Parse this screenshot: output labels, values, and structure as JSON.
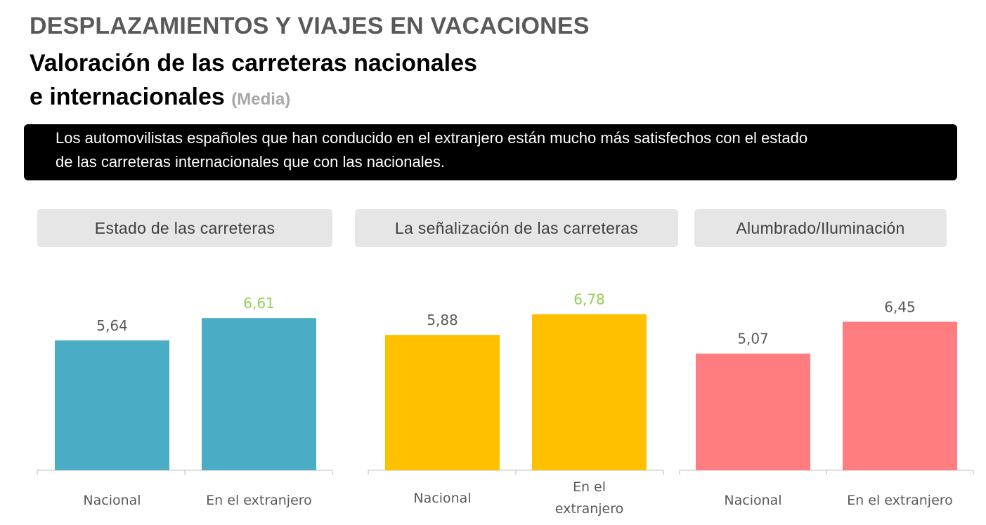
{
  "header": {
    "title": "DESPLAZAMIENTOS Y VIAJES EN VACACIONES",
    "subtitle_line1": "Valoración de las carreteras nacionales",
    "subtitle_line2": "e internacionales",
    "unit": "(Media)"
  },
  "banner": {
    "line1": "Los automovilistas españoles que han conducido en el extranjero están mucho más satisfechos con el estado",
    "line2": "de las carreteras internacionales que con las nacionales."
  },
  "colors": {
    "highlight_value": "#92d050",
    "normal_value": "#595959",
    "axis": "#bfbfbf"
  },
  "chart_data": [
    {
      "type": "bar",
      "title": "Estado de las carreteras",
      "categories": [
        "Nacional",
        "En el extranjero"
      ],
      "values": [
        5.64,
        6.61
      ],
      "value_labels": [
        "5,64",
        "6,61"
      ],
      "highlight": [
        false,
        true
      ],
      "color": "#4bacc6"
    },
    {
      "type": "bar",
      "title": "La señalización de las carreteras",
      "categories": [
        "Nacional",
        "En el extranjero"
      ],
      "values": [
        5.88,
        6.78
      ],
      "value_labels": [
        "5,88",
        "6,78"
      ],
      "highlight": [
        false,
        true
      ],
      "color": "#ffc000"
    },
    {
      "type": "bar",
      "title": "Alumbrado/Iluminación",
      "categories": [
        "Nacional",
        "En el extranjero"
      ],
      "values": [
        5.07,
        6.45
      ],
      "value_labels": [
        "5,07",
        "6,45"
      ],
      "highlight": [
        false,
        false
      ],
      "color": "#ff7c80"
    }
  ]
}
